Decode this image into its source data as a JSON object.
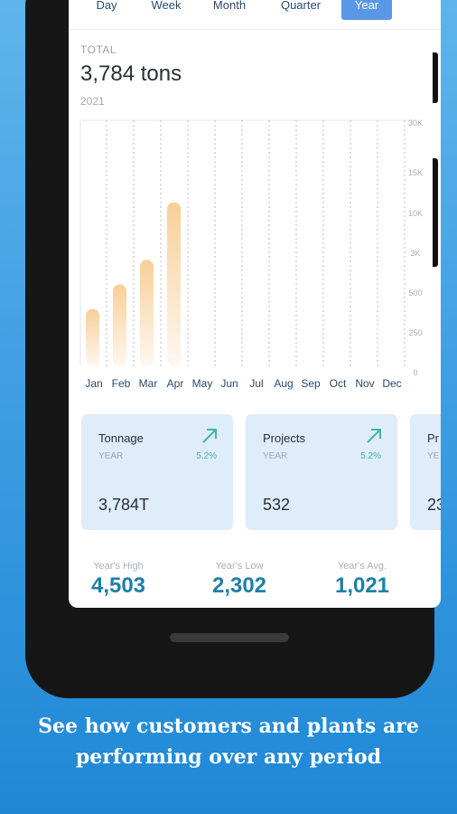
{
  "tabs": [
    "Day",
    "Week",
    "Month",
    "Quarter",
    "Year"
  ],
  "active_tab": "Year",
  "total": {
    "label": "TOTAL",
    "value": "3,784 tons",
    "year": "2021"
  },
  "chart_data": {
    "type": "bar",
    "categories": [
      "Jan",
      "Feb",
      "Mar",
      "Apr",
      "May",
      "Jun",
      "Jul",
      "Aug",
      "Sep",
      "Oct",
      "Nov",
      "Dec"
    ],
    "values": [
      7,
      10,
      13,
      20,
      0,
      0,
      0,
      0,
      0,
      0,
      0,
      0
    ],
    "y_tick_labels": [
      "30K",
      "15K",
      "10K",
      "3K",
      "500",
      "250",
      "0"
    ],
    "bar_color": "#f7cf98",
    "grid": true
  },
  "cards": [
    {
      "title": "Tonnage",
      "period": "YEAR",
      "pct": "5.2%",
      "value": "3,784T"
    },
    {
      "title": "Projects",
      "period": "YEAR",
      "pct": "5.2%",
      "value": "532"
    },
    {
      "title": "Pr",
      "period": "YE",
      "pct": "",
      "value": "23"
    }
  ],
  "summary": [
    {
      "label": "Year's High",
      "value": "4,503"
    },
    {
      "label": "Year's Low",
      "value": "2,302"
    },
    {
      "label": "Year's Avg.",
      "value": "1,021"
    }
  ],
  "caption": {
    "line1": "See how customers and plants are",
    "line2": "performing over any period"
  },
  "colors": {
    "accent": "#5a97e5",
    "value_blue": "#1e7fa8",
    "trend_green": "#3fb8a3",
    "card_bg": "#dfecfa"
  }
}
